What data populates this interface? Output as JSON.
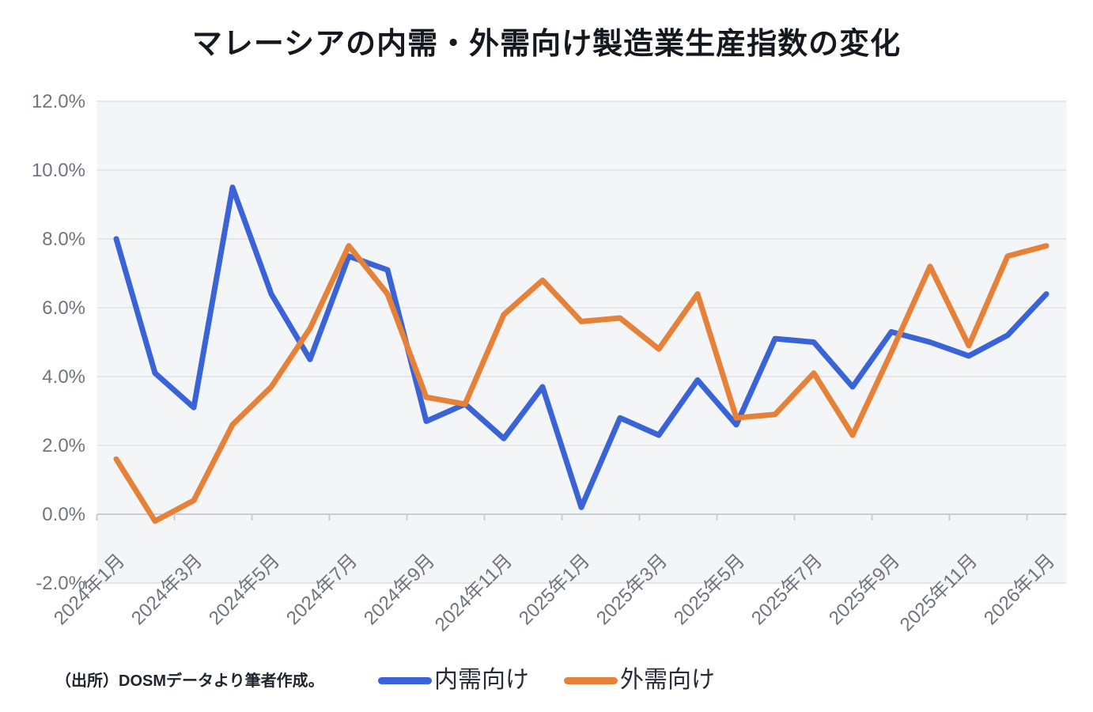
{
  "title": "マレーシアの内需・外需向け製造業生産指数の変化",
  "source_note": "（出所）DOSMデータより筆者作成。",
  "colors": {
    "domestic": "#3A63D8",
    "external": "#E6813A",
    "title_text": "#16181F",
    "axis_text": "#70747E",
    "plot_background": "#F4F5F7",
    "gridline": "#E4E6EA",
    "zero_axis": "#C9CCD3"
  },
  "chart_data": {
    "type": "line",
    "x": [
      "2024年1月",
      "2024年2月",
      "2024年3月",
      "2024年4月",
      "2024年5月",
      "2024年6月",
      "2024年7月",
      "2024年8月",
      "2024年9月",
      "2024年10月",
      "2024年11月",
      "2024年12月",
      "2025年1月",
      "2025年2月",
      "2025年3月",
      "2025年4月",
      "2025年5月",
      "2025年6月",
      "2025年7月",
      "2025年8月",
      "2025年9月",
      "2025年10月",
      "2025年11月",
      "2025年12月",
      "2026年1月"
    ],
    "x_tick_label_indices": [
      0,
      2,
      4,
      6,
      8,
      10,
      12,
      14,
      16,
      18,
      20,
      22,
      24
    ],
    "series": [
      {
        "name": "内需向け",
        "color_key": "domestic",
        "values": [
          8.0,
          4.1,
          3.1,
          9.5,
          6.4,
          4.5,
          7.5,
          7.1,
          2.7,
          3.2,
          2.2,
          3.7,
          0.2,
          2.8,
          2.3,
          3.9,
          2.6,
          5.1,
          5.0,
          3.7,
          5.3,
          5.0,
          4.6,
          5.2,
          6.4
        ]
      },
      {
        "name": "外需向け",
        "color_key": "external",
        "values": [
          1.6,
          -0.2,
          0.4,
          2.6,
          3.7,
          5.4,
          7.8,
          6.4,
          3.4,
          3.2,
          5.8,
          6.8,
          5.6,
          5.7,
          4.8,
          6.4,
          2.8,
          2.9,
          4.1,
          2.3,
          4.7,
          7.2,
          4.9,
          7.5,
          7.8
        ]
      }
    ],
    "ylim": [
      -2,
      12
    ],
    "y_ticks": [
      12,
      10,
      8,
      6,
      4,
      2,
      0,
      -2
    ],
    "y_tick_format": "one_decimal_percent",
    "grid": "horizontal",
    "legend_position": "bottom",
    "x_label_rotation_deg": -45
  }
}
